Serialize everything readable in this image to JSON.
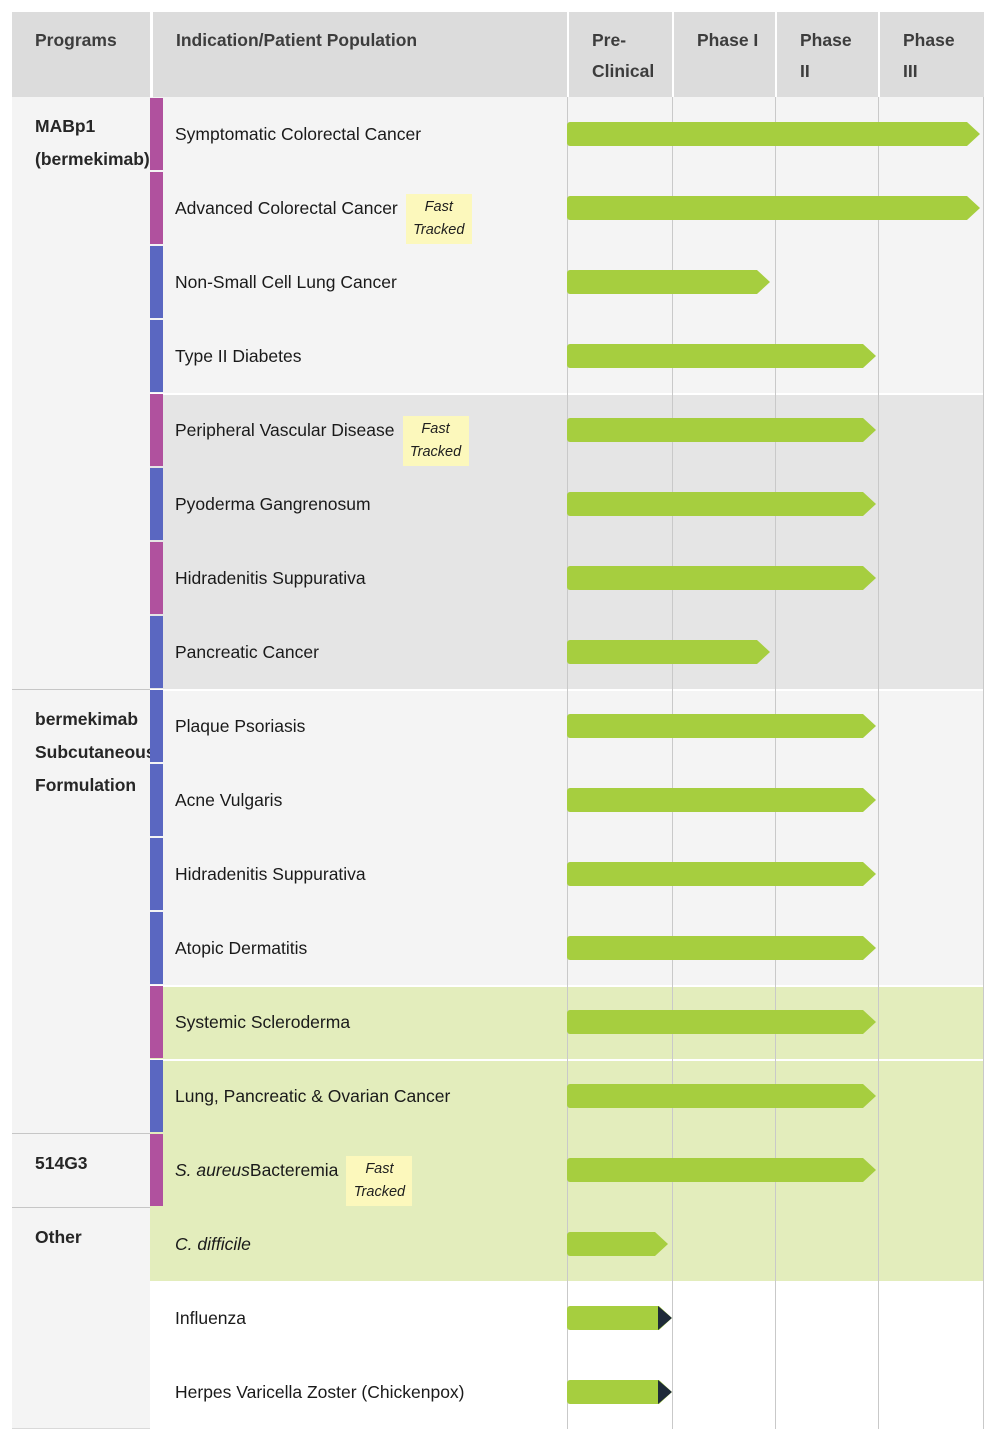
{
  "header": {
    "programs_label": "Programs",
    "indication_label": "Indication/Patient Population",
    "phase_labels": [
      "Pre-\nClinical",
      "Phase I",
      "Phase\nII",
      "Phase\nIII"
    ]
  },
  "fast_tracked_label": "Fast Tracked",
  "colors": {
    "arrow_green": "#a6ce3f",
    "arrow_dark_tip": "#1e2a38",
    "bar_purple": "#b0519e",
    "bar_blue": "#5a67c1",
    "badge_yellow": "#fcf8bc",
    "header_gray": "#dcdcdc",
    "band_light": "#f4f4f4",
    "band_gray": "#e5e5e5",
    "band_green": "#e3edbc"
  },
  "chart_data": {
    "type": "bar",
    "subtype": "clinical-pipeline-gantt",
    "orientation": "horizontal",
    "phase_columns": [
      "Pre-Clinical",
      "Phase I",
      "Phase II",
      "Phase III"
    ],
    "programs": [
      {
        "label": "MABp1 (bermekimab)",
        "row_span": 8
      },
      {
        "label": "bermekimab Subcutaneous Formulation",
        "row_span": 6
      },
      {
        "label": "514G3",
        "row_span": 1
      },
      {
        "label": "Other",
        "row_span": 3
      }
    ],
    "rows": [
      {
        "label": "Symptomatic Colorectal Cancer",
        "bar": "purple",
        "band": "light",
        "progress": "Phase III"
      },
      {
        "label": "Advanced Colorectal Cancer",
        "bar": "purple",
        "band": "light",
        "progress": "Phase III",
        "fast_tracked": true
      },
      {
        "label": "Non-Small Cell Lung Cancer",
        "bar": "blue",
        "band": "light",
        "progress": "Phase I"
      },
      {
        "label": "Type II Diabetes",
        "bar": "blue",
        "band": "light",
        "progress": "Phase II"
      },
      {
        "label": "Peripheral Vascular Disease",
        "bar": "purple",
        "band": "gray",
        "progress": "Phase II",
        "fast_tracked": true
      },
      {
        "label": "Pyoderma Gangrenosum",
        "bar": "blue",
        "band": "gray",
        "progress": "Phase II"
      },
      {
        "label": "Hidradenitis Suppurativa",
        "bar": "purple",
        "band": "gray",
        "progress": "Phase II"
      },
      {
        "label": "Pancreatic Cancer",
        "bar": "blue",
        "band": "gray",
        "progress": "Phase I"
      },
      {
        "label": "Plaque Psoriasis",
        "bar": "blue",
        "band": "light",
        "progress": "Phase II"
      },
      {
        "label": "Acne Vulgaris",
        "bar": "blue",
        "band": "light",
        "progress": "Phase II"
      },
      {
        "label": "Hidradenitis Suppurativa",
        "bar": "blue",
        "band": "light",
        "progress": "Phase II"
      },
      {
        "label": "Atopic Dermatitis",
        "bar": "blue",
        "band": "light",
        "progress": "Phase II"
      },
      {
        "label": "Systemic Scleroderma",
        "bar": "purple",
        "band": "green",
        "progress": "Phase II"
      },
      {
        "label": "Lung, Pancreatic & Ovarian Cancer",
        "bar": "blue",
        "band": "green",
        "progress": "Phase II",
        "separator": true
      },
      {
        "italic": "S. aureus",
        "label": "Bacteremia",
        "bar": "purple",
        "band": "green",
        "progress": "Phase II",
        "fast_tracked": true
      },
      {
        "italic": "C. difficile",
        "band": "green",
        "progress": "Pre-Clinical"
      },
      {
        "label": "Influenza",
        "band": "white",
        "progress": "Pre-Clinical",
        "dark_tip": true
      },
      {
        "label": "Herpes Varicella Zoster (Chickenpox)",
        "band": "white",
        "progress": "Pre-Clinical",
        "dark_tip": true
      }
    ]
  }
}
